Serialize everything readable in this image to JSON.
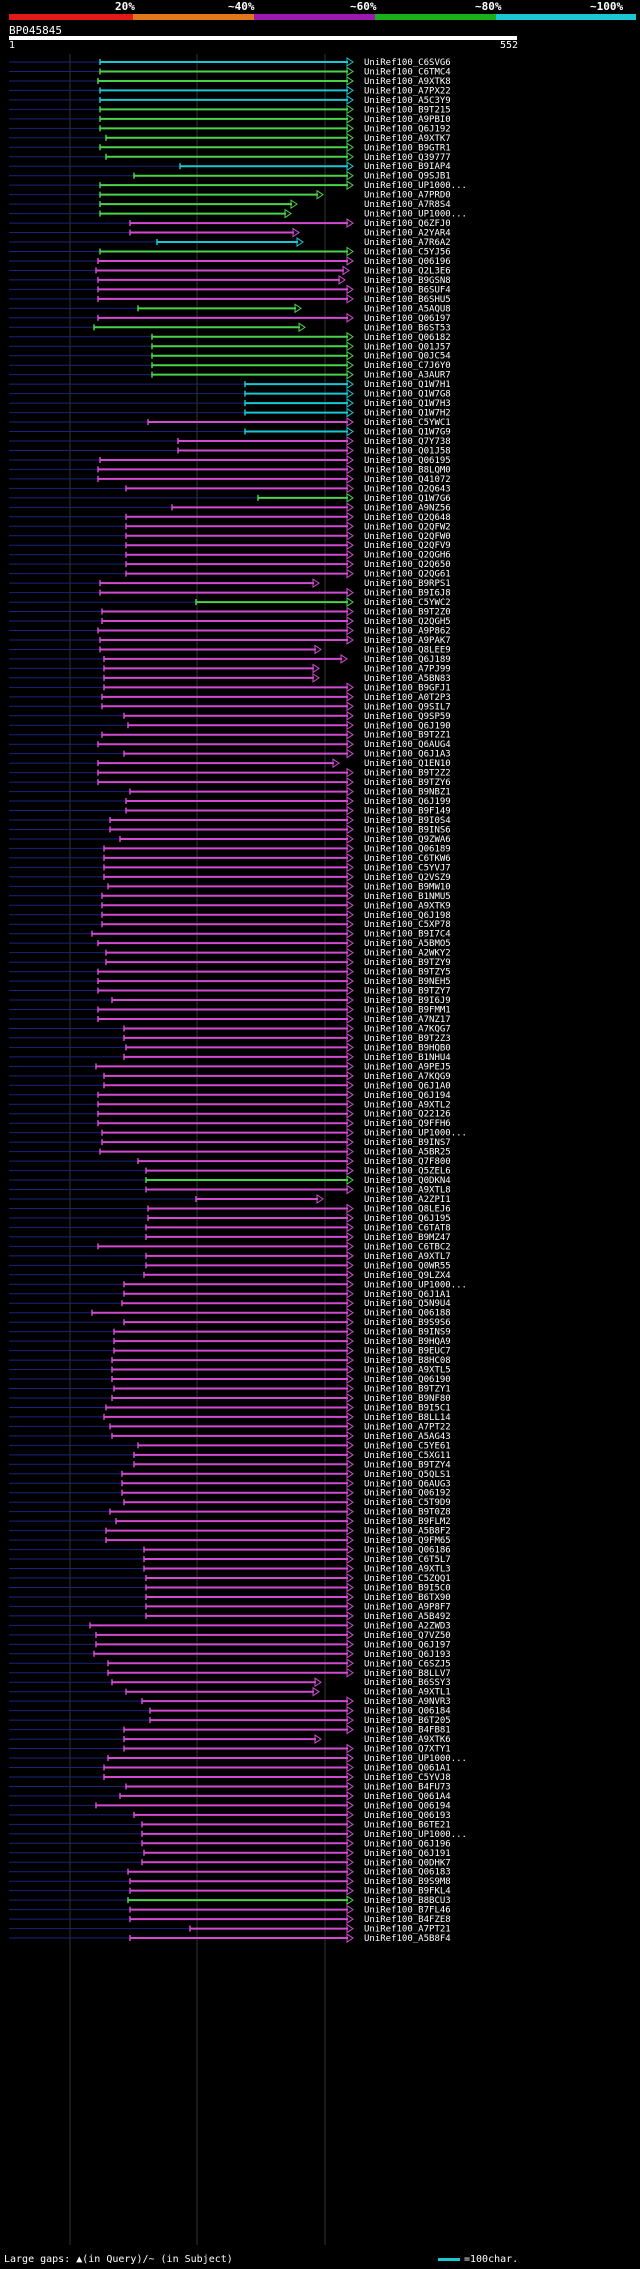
{
  "legend": {
    "ticks": [
      "20%",
      "~40%",
      "~60%",
      "~80%",
      "~100%"
    ],
    "colors": [
      "#e01919",
      "#e07819",
      "#9c19b0",
      "#19b019",
      "#19c8d2"
    ]
  },
  "query": {
    "id": "BP045845",
    "start": "1",
    "end": "552"
  },
  "footer": {
    "left": "Large gaps: ▲(in Query)/~ (in Subject)",
    "right": "=100char."
  },
  "colors": {
    "magenta": "#d24bd2",
    "green": "#4bd24b",
    "cyan": "#19c8d2",
    "label": "#ffffff"
  },
  "hits": [
    {
      "label": "UniRef100_C6SVG6",
      "color": "cyan"
    },
    {
      "label": "UniRef100_C6TMC4",
      "color": "green"
    },
    {
      "label": "UniRef100_A9XTK8",
      "color": "green"
    },
    {
      "label": "UniRef100_A7PX22",
      "color": "cyan"
    },
    {
      "label": "UniRef100_A5C3Y9",
      "color": "cyan"
    },
    {
      "label": "UniRef100_B9T215",
      "color": "green"
    },
    {
      "label": "UniRef100_A9PBI0",
      "color": "green"
    },
    {
      "label": "UniRef100_Q6J192",
      "color": "green"
    },
    {
      "label": "UniRef100_A9XTK7",
      "color": "green"
    },
    {
      "label": "UniRef100_B9GTR1",
      "color": "green"
    },
    {
      "label": "UniRef100_Q39777",
      "color": "green"
    },
    {
      "label": "UniRef100_B9IAP4",
      "color": "cyan"
    },
    {
      "label": "UniRef100_Q9SJB1",
      "color": "green"
    },
    {
      "label": "UniRef100_UP1000...",
      "color": "green"
    },
    {
      "label": "UniRef100_A7PRD0",
      "color": "green"
    },
    {
      "label": "UniRef100_A7R8S4",
      "color": "green"
    },
    {
      "label": "UniRef100_UP1000...",
      "color": "green"
    },
    {
      "label": "UniRef100_Q6ZFJ0",
      "color": "magenta"
    },
    {
      "label": "UniRef100_A2YAR4",
      "color": "magenta"
    },
    {
      "label": "UniRef100_A7R6A2",
      "color": "cyan"
    },
    {
      "label": "UniRef100_C5YJ56",
      "color": "green"
    },
    {
      "label": "UniRef100_Q06196",
      "color": "magenta"
    },
    {
      "label": "UniRef100_Q2L3E6",
      "color": "magenta"
    },
    {
      "label": "UniRef100_B9GSN8",
      "color": "magenta"
    },
    {
      "label": "UniRef100_B6SUF4",
      "color": "magenta"
    },
    {
      "label": "UniRef100_B6SHU5",
      "color": "magenta"
    },
    {
      "label": "UniRef100_A5AQU8",
      "color": "green"
    },
    {
      "label": "UniRef100_Q06197",
      "color": "magenta"
    },
    {
      "label": "UniRef100_B6ST53",
      "color": "green"
    },
    {
      "label": "UniRef100_Q06182",
      "color": "green"
    },
    {
      "label": "UniRef100_Q01J57",
      "color": "green"
    },
    {
      "label": "UniRef100_Q0JC54",
      "color": "green"
    },
    {
      "label": "UniRef100_C7J6Y0",
      "color": "green"
    },
    {
      "label": "UniRef100_A3AUR7",
      "color": "green"
    },
    {
      "label": "UniRef100_Q1W7H1",
      "color": "cyan"
    },
    {
      "label": "UniRef100_Q1W7G8",
      "color": "cyan"
    },
    {
      "label": "UniRef100_Q1W7H3",
      "color": "cyan"
    },
    {
      "label": "UniRef100_Q1W7H2",
      "color": "cyan"
    },
    {
      "label": "UniRef100_C5YWC1",
      "color": "magenta"
    },
    {
      "label": "UniRef100_Q1W7G9",
      "color": "cyan"
    },
    {
      "label": "UniRef100_Q7Y738",
      "color": "magenta"
    },
    {
      "label": "UniRef100_Q01J58",
      "color": "magenta"
    },
    {
      "label": "UniRef100_Q06195",
      "color": "magenta"
    },
    {
      "label": "UniRef100_B8LQM0",
      "color": "magenta"
    },
    {
      "label": "UniRef100_Q41072",
      "color": "magenta"
    },
    {
      "label": "UniRef100_Q2Q643",
      "color": "magenta"
    },
    {
      "label": "UniRef100_Q1W7G6",
      "color": "green"
    },
    {
      "label": "UniRef100_A9NZ56",
      "color": "magenta"
    },
    {
      "label": "UniRef100_Q2Q648",
      "color": "magenta"
    },
    {
      "label": "UniRef100_Q2QFW2",
      "color": "magenta"
    },
    {
      "label": "UniRef100_Q2QFW0",
      "color": "magenta"
    },
    {
      "label": "UniRef100_Q2QFV9",
      "color": "magenta"
    },
    {
      "label": "UniRef100_Q2QGH6",
      "color": "magenta"
    },
    {
      "label": "UniRef100_Q2Q650",
      "color": "magenta"
    },
    {
      "label": "UniRef100_Q2QG61",
      "color": "magenta"
    },
    {
      "label": "UniRef100_B9RPS1",
      "color": "magenta"
    },
    {
      "label": "UniRef100_B9I6J8",
      "color": "magenta"
    },
    {
      "label": "UniRef100_C5YWC2",
      "color": "green"
    },
    {
      "label": "UniRef100_B9T2Z0",
      "color": "magenta"
    },
    {
      "label": "UniRef100_Q2QGH5",
      "color": "magenta"
    },
    {
      "label": "UniRef100_A9P862",
      "color": "magenta"
    },
    {
      "label": "UniRef100_A9PAK7",
      "color": "magenta"
    },
    {
      "label": "UniRef100_Q8LEE9",
      "color": "magenta"
    },
    {
      "label": "UniRef100_Q6J189",
      "color": "magenta"
    },
    {
      "label": "UniRef100_A7PJ99",
      "color": "magenta"
    },
    {
      "label": "UniRef100_A5BN83",
      "color": "magenta"
    },
    {
      "label": "UniRef100_B9GFJ1",
      "color": "magenta"
    },
    {
      "label": "UniRef100_A0T2P3",
      "color": "magenta"
    },
    {
      "label": "UniRef100_Q9SIL7",
      "color": "magenta"
    },
    {
      "label": "UniRef100_Q9SP59",
      "color": "magenta"
    },
    {
      "label": "UniRef100_Q6J190",
      "color": "magenta"
    },
    {
      "label": "UniRef100_B9T2Z1",
      "color": "magenta"
    },
    {
      "label": "UniRef100_Q6AUG4",
      "color": "magenta"
    },
    {
      "label": "UniRef100_Q6J1A3",
      "color": "magenta"
    },
    {
      "label": "UniRef100_Q1EN10",
      "color": "magenta"
    },
    {
      "label": "UniRef100_B9T2Z2",
      "color": "magenta"
    },
    {
      "label": "UniRef100_B9TZY6",
      "color": "magenta"
    },
    {
      "label": "UniRef100_B9NBZ1",
      "color": "magenta"
    },
    {
      "label": "UniRef100_Q6J199",
      "color": "magenta"
    },
    {
      "label": "UniRef100_B9F149",
      "color": "magenta"
    },
    {
      "label": "UniRef100_B9I0S4",
      "color": "magenta"
    },
    {
      "label": "UniRef100_B9INS6",
      "color": "magenta"
    },
    {
      "label": "UniRef100_Q9ZWA6",
      "color": "magenta"
    },
    {
      "label": "UniRef100_Q06189",
      "color": "magenta"
    },
    {
      "label": "UniRef100_C6TKW6",
      "color": "magenta"
    },
    {
      "label": "UniRef100_C5YVJ7",
      "color": "magenta"
    },
    {
      "label": "UniRef100_Q2VSZ9",
      "color": "magenta"
    },
    {
      "label": "UniRef100_B9MW10",
      "color": "magenta"
    },
    {
      "label": "UniRef100_B1NMU5",
      "color": "magenta"
    },
    {
      "label": "UniRef100_A9XTK9",
      "color": "magenta"
    },
    {
      "label": "UniRef100_Q6J198",
      "color": "magenta"
    },
    {
      "label": "UniRef100_C5XP78",
      "color": "magenta"
    },
    {
      "label": "UniRef100_B9I7C4",
      "color": "magenta"
    },
    {
      "label": "UniRef100_A5BMO5",
      "color": "magenta"
    },
    {
      "label": "UniRef100_A2WKY2",
      "color": "magenta"
    },
    {
      "label": "UniRef100_B9TZY9",
      "color": "magenta"
    },
    {
      "label": "UniRef100_B9TZY5",
      "color": "magenta"
    },
    {
      "label": "UniRef100_B9NEH5",
      "color": "magenta"
    },
    {
      "label": "UniRef100_B9TZY7",
      "color": "magenta"
    },
    {
      "label": "UniRef100_B9I6J9",
      "color": "magenta"
    },
    {
      "label": "UniRef100_B9FMM1",
      "color": "magenta"
    },
    {
      "label": "UniRef100_A7NZ17",
      "color": "magenta"
    },
    {
      "label": "UniRef100_A7KQG7",
      "color": "magenta"
    },
    {
      "label": "UniRef100_B9T2Z3",
      "color": "magenta"
    },
    {
      "label": "UniRef100_B9HQB0",
      "color": "magenta"
    },
    {
      "label": "UniRef100_B1NHU4",
      "color": "magenta"
    },
    {
      "label": "UniRef100_A9PEJ5",
      "color": "magenta"
    },
    {
      "label": "UniRef100_A7KQG9",
      "color": "magenta"
    },
    {
      "label": "UniRef100_Q6J1A0",
      "color": "magenta"
    },
    {
      "label": "UniRef100_Q6J194",
      "color": "magenta"
    },
    {
      "label": "UniRef100_A9XTL2",
      "color": "magenta"
    },
    {
      "label": "UniRef100_Q22126",
      "color": "magenta"
    },
    {
      "label": "UniRef100_Q9FFH6",
      "color": "magenta"
    },
    {
      "label": "UniRef100_UP1000...",
      "color": "magenta"
    },
    {
      "label": "UniRef100_B9INS7",
      "color": "magenta"
    },
    {
      "label": "UniRef100_A5BR25",
      "color": "magenta"
    },
    {
      "label": "UniRef100_Q7F800",
      "color": "magenta"
    },
    {
      "label": "UniRef100_Q5ZEL6",
      "color": "magenta"
    },
    {
      "label": "UniRef100_Q0DKN4",
      "color": "green"
    },
    {
      "label": "UniRef100_A9XTL8",
      "color": "magenta"
    },
    {
      "label": "UniRef100_A2ZPI1",
      "color": "magenta"
    },
    {
      "label": "UniRef100_Q8LEJ6",
      "color": "magenta"
    },
    {
      "label": "UniRef100_Q6J195",
      "color": "magenta"
    },
    {
      "label": "UniRef100_C6TAT8",
      "color": "magenta"
    },
    {
      "label": "UniRef100_B9MZ47",
      "color": "magenta"
    },
    {
      "label": "UniRef100_C6TBC2",
      "color": "magenta"
    },
    {
      "label": "UniRef100_A9XTL7",
      "color": "magenta"
    },
    {
      "label": "UniRef100_Q0WR55",
      "color": "magenta"
    },
    {
      "label": "UniRef100_Q9LZX4",
      "color": "magenta"
    },
    {
      "label": "UniRef100_UP1000...",
      "color": "magenta"
    },
    {
      "label": "UniRef100_Q6J1A1",
      "color": "magenta"
    },
    {
      "label": "UniRef100_Q5N9U4",
      "color": "magenta"
    },
    {
      "label": "UniRef100_Q06188",
      "color": "magenta"
    },
    {
      "label": "UniRef100_B9S9S6",
      "color": "magenta"
    },
    {
      "label": "UniRef100_B9INS9",
      "color": "magenta"
    },
    {
      "label": "UniRef100_B9HQA9",
      "color": "magenta"
    },
    {
      "label": "UniRef100_B9EUC7",
      "color": "magenta"
    },
    {
      "label": "UniRef100_B8HC08",
      "color": "magenta"
    },
    {
      "label": "UniRef100_A9XTL5",
      "color": "magenta"
    },
    {
      "label": "UniRef100_Q06190",
      "color": "magenta"
    },
    {
      "label": "UniRef100_B9TZY1",
      "color": "magenta"
    },
    {
      "label": "UniRef100_B9NF80",
      "color": "magenta"
    },
    {
      "label": "UniRef100_B9I5C1",
      "color": "magenta"
    },
    {
      "label": "UniRef100_B8LL14",
      "color": "magenta"
    },
    {
      "label": "UniRef100_A7PT22",
      "color": "magenta"
    },
    {
      "label": "UniRef100_A5AG43",
      "color": "magenta"
    },
    {
      "label": "UniRef100_C5YE61",
      "color": "magenta"
    },
    {
      "label": "UniRef100_C5XG11",
      "color": "magenta"
    },
    {
      "label": "UniRef100_B9TZY4",
      "color": "magenta"
    },
    {
      "label": "UniRef100_Q5QLS1",
      "color": "magenta"
    },
    {
      "label": "UniRef100_Q6AUG3",
      "color": "magenta"
    },
    {
      "label": "UniRef100_Q06192",
      "color": "magenta"
    },
    {
      "label": "UniRef100_C5T9D9",
      "color": "magenta"
    },
    {
      "label": "UniRef100_B9T0Z8",
      "color": "magenta"
    },
    {
      "label": "UniRef100_B9FLM2",
      "color": "magenta"
    },
    {
      "label": "UniRef100_A5B8F2",
      "color": "magenta"
    },
    {
      "label": "UniRef100_Q9FM65",
      "color": "magenta"
    },
    {
      "label": "UniRef100_Q06186",
      "color": "magenta"
    },
    {
      "label": "UniRef100_C6T5L7",
      "color": "magenta"
    },
    {
      "label": "UniRef100_A9XTL3",
      "color": "magenta"
    },
    {
      "label": "UniRef100_C5ZQQ1",
      "color": "magenta"
    },
    {
      "label": "UniRef100_B9I5C0",
      "color": "magenta"
    },
    {
      "label": "UniRef100_B6TX90",
      "color": "magenta"
    },
    {
      "label": "UniRef100_A9P8F7",
      "color": "magenta"
    },
    {
      "label": "UniRef100_A5B492",
      "color": "magenta"
    },
    {
      "label": "UniRef100_A2ZWD3",
      "color": "magenta"
    },
    {
      "label": "UniRef100_Q7VZ50",
      "color": "magenta"
    },
    {
      "label": "UniRef100_Q6J197",
      "color": "magenta"
    },
    {
      "label": "UniRef100_Q6J193",
      "color": "magenta"
    },
    {
      "label": "UniRef100_C6SZJ5",
      "color": "magenta"
    },
    {
      "label": "UniRef100_B8LLV7",
      "color": "magenta"
    },
    {
      "label": "UniRef100_B6SSY3",
      "color": "magenta"
    },
    {
      "label": "UniRef100_A9XTL1",
      "color": "magenta"
    },
    {
      "label": "UniRef100_A9NVR3",
      "color": "magenta"
    },
    {
      "label": "UniRef100_Q06184",
      "color": "magenta"
    },
    {
      "label": "UniRef100_B6T205",
      "color": "magenta"
    },
    {
      "label": "UniRef100_B4FB81",
      "color": "magenta"
    },
    {
      "label": "UniRef100_A9XTK6",
      "color": "magenta"
    },
    {
      "label": "UniRef100_Q7XTY1",
      "color": "magenta"
    },
    {
      "label": "UniRef100_UP1000...",
      "color": "magenta"
    },
    {
      "label": "UniRef100_Q061A1",
      "color": "magenta"
    },
    {
      "label": "UniRef100_C5YVJ8",
      "color": "magenta"
    },
    {
      "label": "UniRef100_B4FU73",
      "color": "magenta"
    },
    {
      "label": "UniRef100_Q061A4",
      "color": "magenta"
    },
    {
      "label": "UniRef100_Q06194",
      "color": "magenta"
    },
    {
      "label": "UniRef100_Q06193",
      "color": "magenta"
    },
    {
      "label": "UniRef100_B6TE21",
      "color": "magenta"
    },
    {
      "label": "UniRef100_UP1000...",
      "color": "magenta"
    },
    {
      "label": "UniRef100_Q6J196",
      "color": "magenta"
    },
    {
      "label": "UniRef100_Q6J191",
      "color": "magenta"
    },
    {
      "label": "UniRef100_Q0DHK7",
      "color": "magenta"
    },
    {
      "label": "UniRef100_Q06183",
      "color": "magenta"
    },
    {
      "label": "UniRef100_B9S9M8",
      "color": "magenta"
    },
    {
      "label": "UniRef100_B9FKL4",
      "color": "magenta"
    },
    {
      "label": "UniRef100_B8BCU3",
      "color": "green"
    },
    {
      "label": "UniRef100_B7FL46",
      "color": "magenta"
    },
    {
      "label": "UniRef100_B4FZE8",
      "color": "magenta"
    },
    {
      "label": "UniRef100_A7PT21",
      "color": "magenta"
    },
    {
      "label": "UniRef100_A5B8F4",
      "color": "magenta"
    }
  ]
}
